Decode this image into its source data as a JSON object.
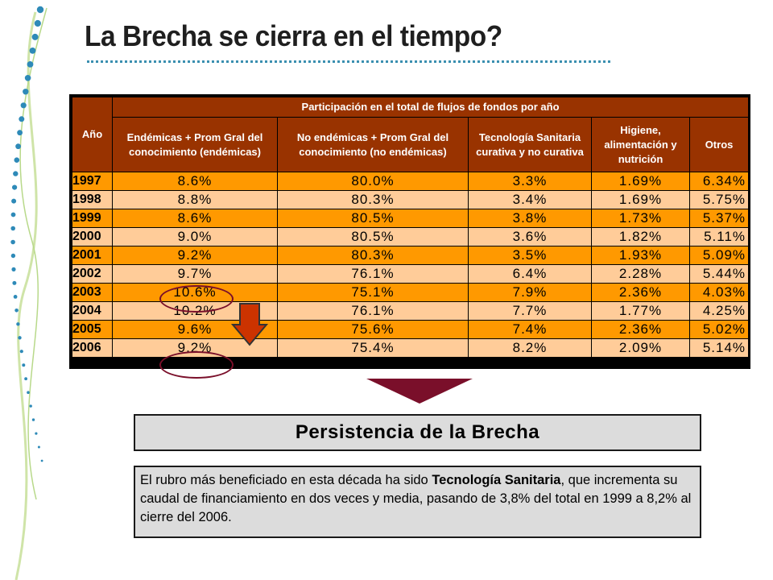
{
  "title": "La Brecha se cierra en el tiempo?",
  "table": {
    "year_header": "Año",
    "group_header": "Participación en el total de flujos de fondos por año",
    "columns": [
      "Endémicas + Prom Gral del conocimiento (endémicas)",
      "No endémicas + Prom Gral del conocimiento (no endémicas)",
      "Tecnología Sanitaria curativa y no curativa",
      "Higiene, alimentación y nutrición",
      "Otros"
    ],
    "rows": [
      {
        "year": "1997",
        "values": [
          "8.6%",
          "80.0%",
          "3.3%",
          "1.69%",
          "6.34%"
        ]
      },
      {
        "year": "1998",
        "values": [
          "8.8%",
          "80.3%",
          "3.4%",
          "1.69%",
          "5.75%"
        ]
      },
      {
        "year": "1999",
        "values": [
          "8.6%",
          "80.5%",
          "3.8%",
          "1.73%",
          "5.37%"
        ]
      },
      {
        "year": "2000",
        "values": [
          "9.0%",
          "80.5%",
          "3.6%",
          "1.82%",
          "5.11%"
        ]
      },
      {
        "year": "2001",
        "values": [
          "9.2%",
          "80.3%",
          "3.5%",
          "1.93%",
          "5.09%"
        ]
      },
      {
        "year": "2002",
        "values": [
          "9.7%",
          "76.1%",
          "6.4%",
          "2.28%",
          "5.44%"
        ]
      },
      {
        "year": "2003",
        "values": [
          "10.6%",
          "75.1%",
          "7.9%",
          "2.36%",
          "4.03%"
        ]
      },
      {
        "year": "2004",
        "values": [
          "10.2%",
          "76.1%",
          "7.7%",
          "1.77%",
          "4.25%"
        ]
      },
      {
        "year": "2005",
        "values": [
          "9.6%",
          "75.6%",
          "7.4%",
          "2.36%",
          "5.02%"
        ]
      },
      {
        "year": "2006",
        "values": [
          "9.2%",
          "75.4%",
          "8.2%",
          "2.09%",
          "5.14%"
        ]
      }
    ]
  },
  "persistence_box": "Persistencia de la Brecha",
  "note": {
    "before": "El rubro más beneficiado en esta década ha sido ",
    "bold": "Tecnología Sanitaria",
    "after": ", que incrementa su caudal de financiamiento en dos veces y media, pasando de 3,8% del total en 1999 a 8,2% al cierre del 2006."
  },
  "colors": {
    "header_bg": "#993300",
    "row_dark": "#ff9900",
    "row_light": "#ffcc99",
    "accent": "#7a0f2a",
    "dots": "#3a8fb0"
  }
}
